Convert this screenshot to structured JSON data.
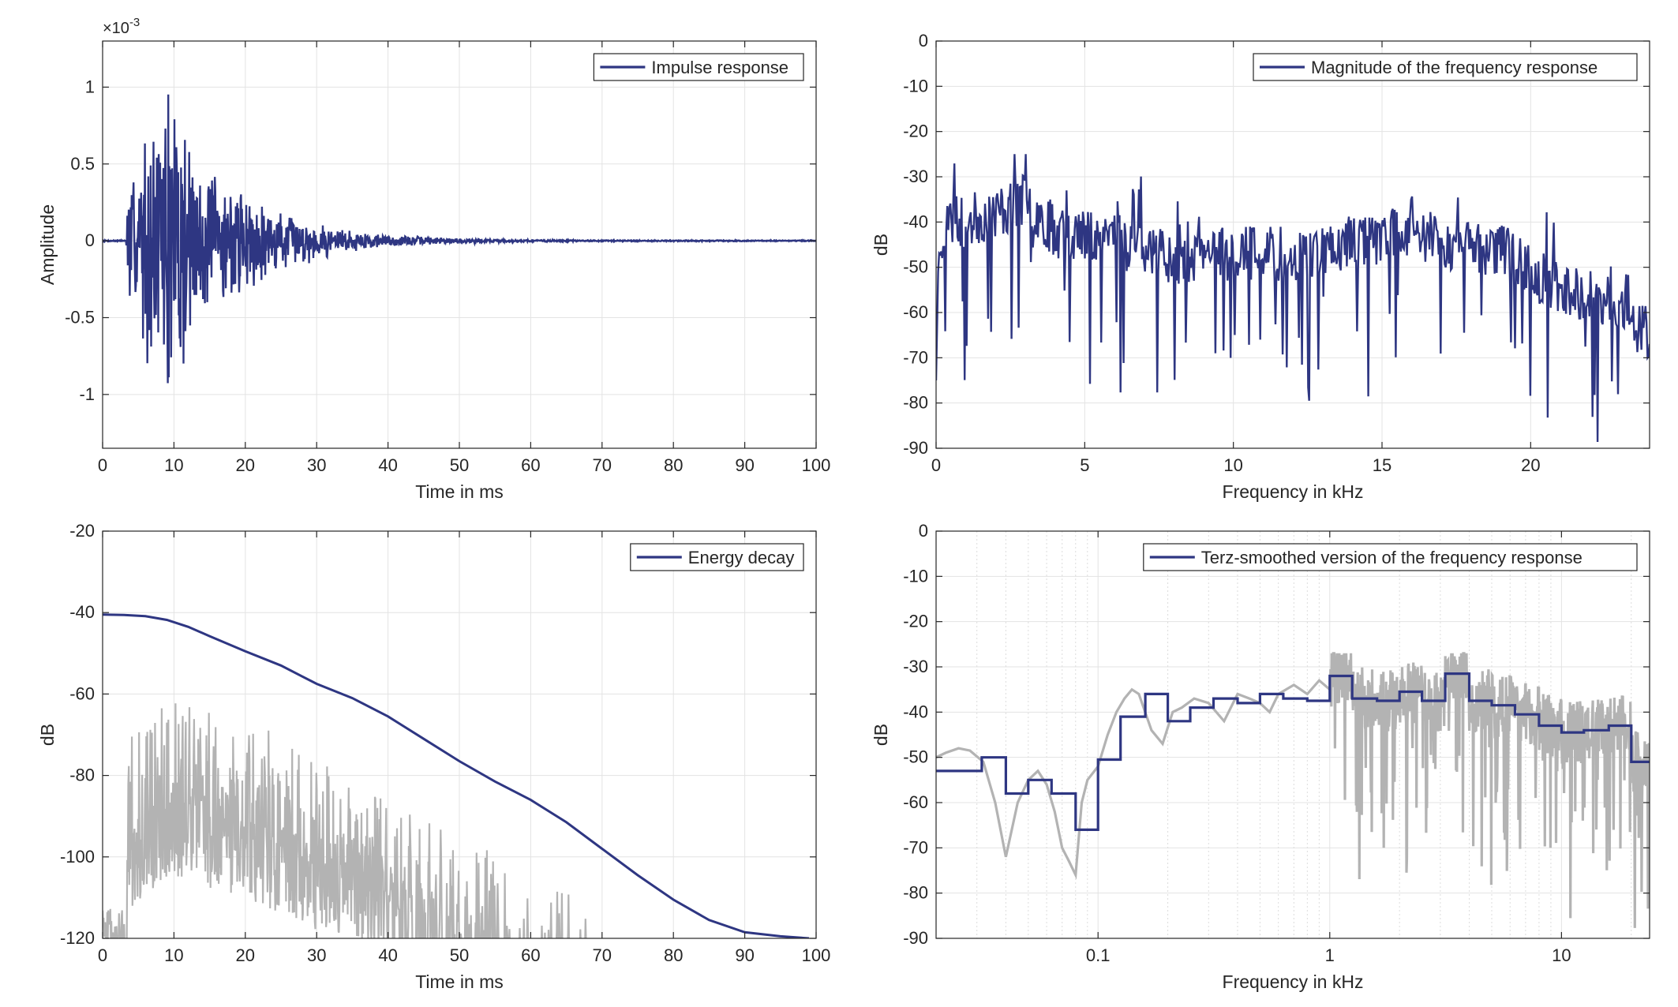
{
  "chart_data": [
    {
      "type": "line",
      "panel": "impulse",
      "xlabel": "Time in ms",
      "ylabel": "Amplitude",
      "exponent_label": "×10",
      "exponent_power": "-3",
      "xlim": [
        0,
        100
      ],
      "ylim": [
        -1.35,
        1.3
      ],
      "xticks": [
        0,
        10,
        20,
        30,
        40,
        50,
        60,
        70,
        80,
        90,
        100
      ],
      "xtick_labels": [
        "0",
        "10",
        "20",
        "30",
        "40",
        "50",
        "60",
        "70",
        "80",
        "90",
        "100"
      ],
      "yticks": [
        -1,
        -0.5,
        0,
        0.5,
        1
      ],
      "ytick_labels": [
        "-1",
        "-0.5",
        "0",
        "0.5",
        "1"
      ],
      "grid": true,
      "legend_position": "top-right",
      "colors": {
        "series": "#2e3682"
      },
      "series": [
        {
          "name": "Impulse response",
          "envelope": [
            [
              0,
              0.005
            ],
            [
              3.3,
              0.005
            ],
            [
              3.6,
              0.46
            ],
            [
              4.5,
              0.5
            ],
            [
              5,
              0.62
            ],
            [
              6,
              0.8
            ],
            [
              7,
              0.85
            ],
            [
              8,
              0.9
            ],
            [
              9.3,
              1.22
            ],
            [
              10.5,
              0.95
            ],
            [
              11,
              1.22
            ],
            [
              12,
              0.9
            ],
            [
              13,
              0.6
            ],
            [
              15,
              0.5
            ],
            [
              17,
              0.45
            ],
            [
              20,
              0.35
            ],
            [
              24,
              0.24
            ],
            [
              28,
              0.16
            ],
            [
              32,
              0.11
            ],
            [
              36,
              0.07
            ],
            [
              40,
              0.045
            ],
            [
              45,
              0.03
            ],
            [
              50,
              0.02
            ],
            [
              55,
              0.012
            ],
            [
              60,
              0.008
            ],
            [
              70,
              0.005
            ],
            [
              100,
              0.004
            ]
          ]
        }
      ]
    },
    {
      "type": "line",
      "panel": "magnitude",
      "xlabel": "Frequency in kHz",
      "ylabel": "dB",
      "xlim": [
        0,
        24
      ],
      "ylim": [
        -90,
        0
      ],
      "xticks": [
        0,
        5,
        10,
        15,
        20
      ],
      "xtick_labels": [
        "0",
        "5",
        "10",
        "15",
        "20"
      ],
      "yticks": [
        0,
        -10,
        -20,
        -30,
        -40,
        -50,
        -60,
        -70,
        -80,
        -90
      ],
      "ytick_labels": [
        "0",
        "-10",
        "-20",
        "-30",
        "-40",
        "-50",
        "-60",
        "-70",
        "-80",
        "-90"
      ],
      "grid": true,
      "legend_position": "top-right",
      "colors": {
        "series": "#2e3682"
      },
      "series": [
        {
          "name": "Magnitude of the frequency response",
          "trend": [
            [
              0,
              -45
            ],
            [
              0.5,
              -40
            ],
            [
              1,
              -40
            ],
            [
              2,
              -38
            ],
            [
              3,
              -35
            ],
            [
              4,
              -42
            ],
            [
              5,
              -43
            ],
            [
              6,
              -42
            ],
            [
              8,
              -48
            ],
            [
              10,
              -47
            ],
            [
              12,
              -47
            ],
            [
              14,
              -45
            ],
            [
              16,
              -42
            ],
            [
              17,
              -45
            ],
            [
              19,
              -46
            ],
            [
              20.5,
              -53
            ],
            [
              21.5,
              -55
            ],
            [
              23,
              -60
            ],
            [
              24,
              -65
            ]
          ]
        }
      ]
    },
    {
      "type": "line",
      "panel": "energy_decay",
      "xlabel": "Time in ms",
      "ylabel": "dB",
      "xlim": [
        0,
        100
      ],
      "ylim": [
        -120,
        -20
      ],
      "xticks": [
        0,
        10,
        20,
        30,
        40,
        50,
        60,
        70,
        80,
        90,
        100
      ],
      "xtick_labels": [
        "0",
        "10",
        "20",
        "30",
        "40",
        "50",
        "60",
        "70",
        "80",
        "90",
        "100"
      ],
      "yticks": [
        -20,
        -40,
        -60,
        -80,
        -100,
        -120
      ],
      "ytick_labels": [
        "-20",
        "-40",
        "-60",
        "-80",
        "-100",
        "-120"
      ],
      "grid": true,
      "legend_position": "top-right",
      "colors": {
        "series": "#2e3682",
        "background": "#b3b3b3"
      },
      "series": [
        {
          "name": "Energy decay",
          "x": [
            0,
            3,
            6,
            9,
            12,
            15,
            20,
            25,
            30,
            35,
            40,
            45,
            50,
            55,
            60,
            65,
            70,
            75,
            80,
            85,
            90,
            95,
            99
          ],
          "values": [
            -40.5,
            -40.6,
            -40.9,
            -41.8,
            -43.5,
            -45.8,
            -49.5,
            -53,
            -57.5,
            -61,
            -65.5,
            -71,
            -76.5,
            -81.5,
            -86,
            -91.5,
            -98,
            -104.5,
            -110.5,
            -115.5,
            -118.5,
            -119.5,
            -120
          ]
        },
        {
          "envelope": [
            [
              0,
              -118
            ],
            [
              3.3,
              -118
            ],
            [
              3.6,
              -68
            ],
            [
              6,
              -64
            ],
            [
              10,
              -60
            ],
            [
              12,
              -60
            ],
            [
              15,
              -63
            ],
            [
              20,
              -65
            ],
            [
              25,
              -69
            ],
            [
              30,
              -73
            ],
            [
              35,
              -76
            ],
            [
              40,
              -80
            ],
            [
              45,
              -86
            ],
            [
              50,
              -92
            ],
            [
              55,
              -97
            ],
            [
              60,
              -103
            ],
            [
              65,
              -108
            ],
            [
              68,
              -112
            ],
            [
              72,
              -118
            ]
          ]
        }
      ]
    },
    {
      "type": "line",
      "panel": "terz",
      "xlabel": "Frequency in kHz",
      "ylabel": "dB",
      "xscale": "log",
      "xlim": [
        0.02,
        24
      ],
      "ylim": [
        -90,
        0
      ],
      "xticks": [
        0.1,
        1,
        10
      ],
      "xtick_labels": [
        "0.1",
        "1",
        "10"
      ],
      "yticks": [
        0,
        -10,
        -20,
        -30,
        -40,
        -50,
        -60,
        -70,
        -80,
        -90
      ],
      "ytick_labels": [
        "0",
        "-10",
        "-20",
        "-30",
        "-40",
        "-50",
        "-60",
        "-70",
        "-80",
        "-90"
      ],
      "grid": true,
      "legend_position": "top-right",
      "colors": {
        "series": "#2e3682",
        "background": "#b3b3b3"
      },
      "series": [
        {
          "name": "Terz-smoothed version of the frequency response",
          "steps": [
            [
              0.02,
              0.0315,
              -53
            ],
            [
              0.0315,
              0.04,
              -50
            ],
            [
              0.04,
              0.05,
              -58
            ],
            [
              0.05,
              0.063,
              -55
            ],
            [
              0.063,
              0.08,
              -58
            ],
            [
              0.08,
              0.1,
              -66
            ],
            [
              0.1,
              0.125,
              -50.5
            ],
            [
              0.125,
              0.16,
              -41
            ],
            [
              0.16,
              0.2,
              -36
            ],
            [
              0.2,
              0.25,
              -42
            ],
            [
              0.25,
              0.315,
              -39
            ],
            [
              0.315,
              0.4,
              -37
            ],
            [
              0.4,
              0.5,
              -38
            ],
            [
              0.5,
              0.63,
              -36
            ],
            [
              0.63,
              0.8,
              -37
            ],
            [
              0.8,
              1,
              -37.5
            ],
            [
              1,
              1.25,
              -32
            ],
            [
              1.25,
              1.6,
              -37
            ],
            [
              1.6,
              2,
              -37.5
            ],
            [
              2,
              2.5,
              -35.5
            ],
            [
              2.5,
              3.15,
              -37.5
            ],
            [
              3.15,
              4,
              -31.5
            ],
            [
              4,
              5,
              -37.5
            ],
            [
              5,
              6.3,
              -38.5
            ],
            [
              6.3,
              8,
              -40.5
            ],
            [
              8,
              10,
              -43
            ],
            [
              10,
              12.5,
              -44.5
            ],
            [
              12.5,
              16,
              -44
            ],
            [
              16,
              20,
              -43
            ],
            [
              20,
              24,
              -51
            ]
          ]
        },
        {
          "x": [
            0.02,
            0.022,
            0.025,
            0.028,
            0.032,
            0.036,
            0.04,
            0.045,
            0.05,
            0.055,
            0.06,
            0.065,
            0.07,
            0.075,
            0.08,
            0.085,
            0.09,
            0.1,
            0.11,
            0.12,
            0.13,
            0.14,
            0.15,
            0.17,
            0.19,
            0.21,
            0.23,
            0.26,
            0.3,
            0.35,
            0.4,
            0.45,
            0.5,
            0.55,
            0.6,
            0.7,
            0.8,
            0.9,
            1.0
          ],
          "values": [
            -50,
            -49,
            -48,
            -48.5,
            -51,
            -60,
            -72,
            -60,
            -55,
            -53,
            -56,
            -62,
            -70,
            -73,
            -76,
            -60,
            -55,
            -52,
            -45,
            -40,
            -37,
            -35,
            -36,
            -44,
            -47,
            -40,
            -39,
            -37,
            -38,
            -42,
            -36,
            -37,
            -38,
            -40,
            -36,
            -34,
            -36,
            -33,
            -35
          ]
        }
      ]
    }
  ]
}
